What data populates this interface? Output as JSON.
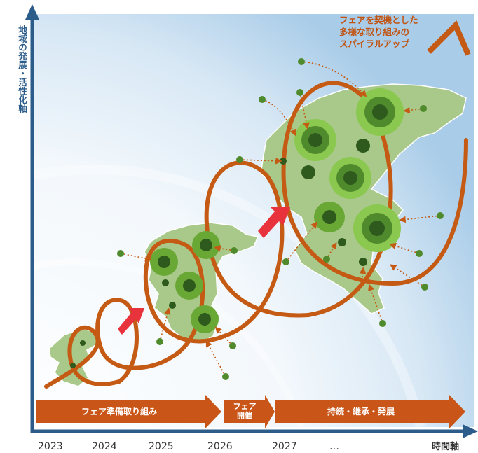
{
  "y_axis_label": "地域の発展・活性化軸",
  "x_axis_label": "時間軸",
  "spiral_caption": "フェアを契機とした\n多様な取り組みの\nスパイラルアップ",
  "phases": [
    {
      "label": "フェア準備取り組み"
    },
    {
      "label": "フェア\n開催"
    },
    {
      "label": "持続・継承・発展"
    }
  ],
  "years": [
    "2023",
    "2024",
    "2025",
    "2026",
    "2027",
    "…"
  ],
  "colors": {
    "spiral": "#c45a13",
    "arrow_band": "#c95618",
    "axis": "#2b5c8a",
    "map_land": "#a9c98a",
    "hub_outer": "#6aa836",
    "hub_inner": "#2f5a1d",
    "progress_arrow": "#e8323c",
    "background_glow": "#cfe3f3"
  }
}
